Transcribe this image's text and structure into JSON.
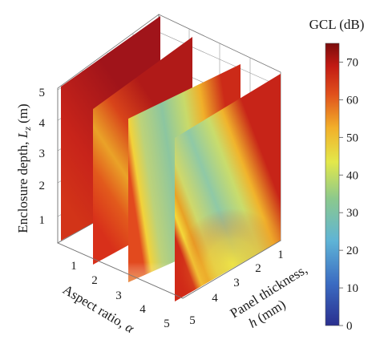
{
  "chart_data": {
    "type": "heatmap",
    "title": "",
    "z_axis": {
      "label_prefix": "Enclosure depth, ",
      "label_symbol": "L",
      "label_sub": "z",
      "label_unit": " (m)",
      "ticks": [
        "1",
        "2",
        "3",
        "4",
        "5"
      ],
      "range": [
        0,
        5
      ]
    },
    "x_axis": {
      "label": "Aspect ratio, ",
      "label_symbol": "α",
      "ticks": [
        "1",
        "2",
        "3",
        "4",
        "5"
      ],
      "range": [
        0.5,
        5
      ]
    },
    "y_axis": {
      "label_line1": "Panel thickness,",
      "label_symbol": "h",
      "label_unit": " (mm)",
      "ticks": [
        "1",
        "2",
        "3",
        "4",
        "5"
      ],
      "range": [
        0.5,
        5
      ]
    },
    "colorbar": {
      "title": "GCL (dB)",
      "ticks": [
        "0",
        "10",
        "20",
        "30",
        "40",
        "50",
        "60",
        "70"
      ],
      "range": [
        0,
        75
      ]
    },
    "slices": [
      {
        "aspect_ratio": 1,
        "gcl_min": 65,
        "gcl_max": 74
      },
      {
        "aspect_ratio": 2,
        "gcl_min": 55,
        "gcl_max": 74
      },
      {
        "aspect_ratio": 3,
        "gcl_min": 38,
        "gcl_max": 74
      },
      {
        "aspect_ratio": 4,
        "gcl_min": 36,
        "gcl_max": 74
      }
    ],
    "grid": true,
    "legend": "colorbar-right"
  }
}
